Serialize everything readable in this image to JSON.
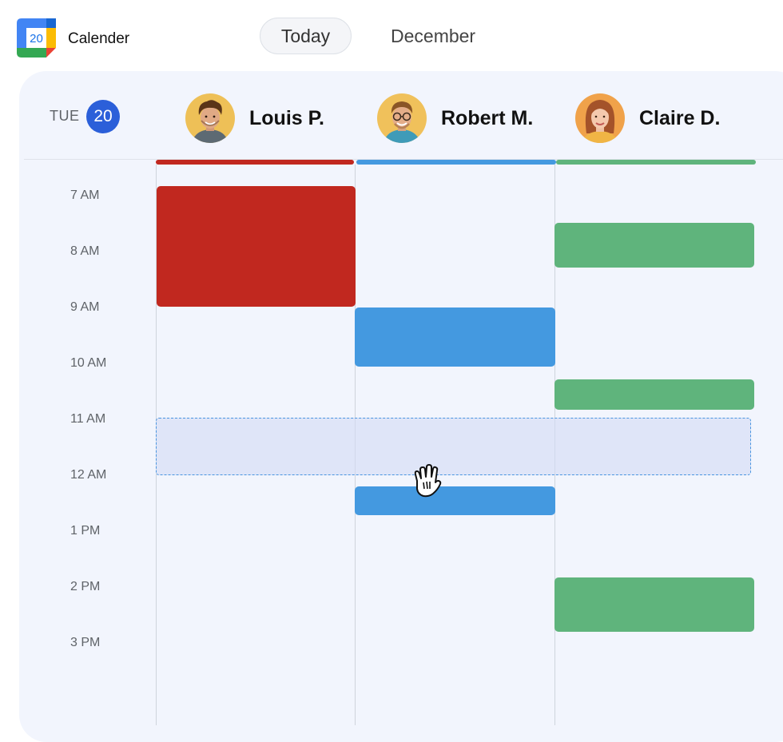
{
  "app": {
    "title": "Calender",
    "logo_day": "20"
  },
  "toolbar": {
    "today_label": "Today",
    "month_label": "December"
  },
  "day": {
    "weekday": "TUE",
    "date": "20"
  },
  "people": [
    {
      "name": "Louis P.",
      "color": "#c1281f"
    },
    {
      "name": "Robert M.",
      "color": "#4499e0"
    },
    {
      "name": "Claire D.",
      "color": "#5fb47c"
    }
  ],
  "hours": [
    "7 AM",
    "8 AM",
    "9 AM",
    "10 AM",
    "11 AM",
    "12 AM",
    "1 PM",
    "2 PM",
    "3 PM"
  ],
  "events": [
    {
      "person": "Louis P.",
      "start": "7:00",
      "end": "9:00"
    },
    {
      "person": "Claire D.",
      "start": "7:40",
      "end": "8:20"
    },
    {
      "person": "Robert M.",
      "start": "9:00",
      "end": "10:00"
    },
    {
      "person": "Claire D.",
      "start": "10:30",
      "end": "10:55"
    },
    {
      "person": "Robert M.",
      "start": "12:15",
      "end": "12:40"
    },
    {
      "person": "Claire D.",
      "start": "2:00",
      "end": "3:00"
    }
  ],
  "selection": {
    "start": "11:00",
    "end": "12:00"
  },
  "icons": {
    "logo": "calendar-app-icon",
    "cursor": "hand-grab-icon"
  }
}
